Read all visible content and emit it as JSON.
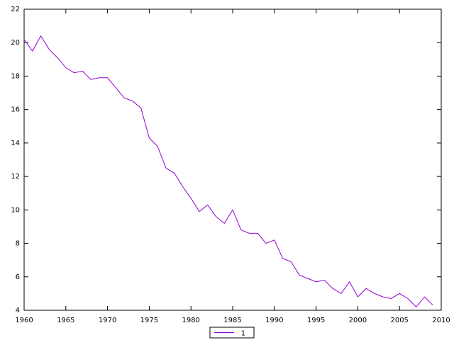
{
  "chart_data": {
    "type": "line",
    "x": [
      1960,
      1961,
      1962,
      1963,
      1964,
      1965,
      1966,
      1967,
      1968,
      1969,
      1970,
      1971,
      1972,
      1973,
      1974,
      1975,
      1976,
      1977,
      1978,
      1979,
      1980,
      1981,
      1982,
      1983,
      1984,
      1985,
      1986,
      1987,
      1988,
      1989,
      1990,
      1991,
      1992,
      1993,
      1994,
      1995,
      1996,
      1997,
      1998,
      1999,
      2000,
      2001,
      2002,
      2003,
      2004,
      2005,
      2006,
      2007,
      2008,
      2009
    ],
    "series": [
      {
        "name": "1",
        "color": "#9400d3",
        "values": [
          20.2,
          19.5,
          20.4,
          19.6,
          19.1,
          18.5,
          18.2,
          18.3,
          17.8,
          17.9,
          17.9,
          17.3,
          16.7,
          16.5,
          16.1,
          14.3,
          13.8,
          12.5,
          12.2,
          11.4,
          10.7,
          9.9,
          10.3,
          9.6,
          9.2,
          10.0,
          8.8,
          8.6,
          8.6,
          8.0,
          8.2,
          7.1,
          6.9,
          6.1,
          5.9,
          5.7,
          5.8,
          5.3,
          5.0,
          5.7,
          4.8,
          5.3,
          5.0,
          4.8,
          4.7,
          5.0,
          4.7,
          4.2,
          4.8,
          4.3
        ]
      }
    ],
    "xlim": [
      1960,
      2010
    ],
    "xticks": [
      1960,
      1965,
      1970,
      1975,
      1980,
      1985,
      1990,
      1995,
      2000,
      2005,
      2010
    ],
    "ylim": [
      4,
      22
    ],
    "yticks": [
      4,
      6,
      8,
      10,
      12,
      14,
      16,
      18,
      20,
      22
    ],
    "grid": false,
    "legend": "bottom"
  }
}
